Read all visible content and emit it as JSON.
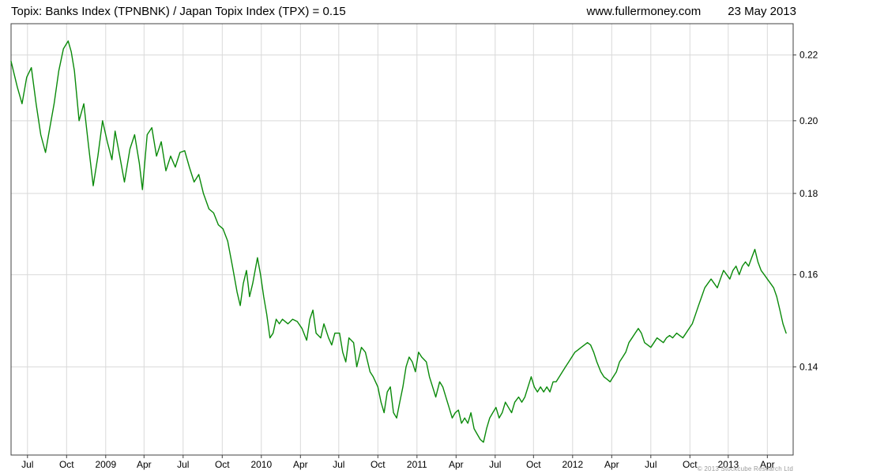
{
  "header": {
    "title": "Topix: Banks Index (TPNBNK) / Japan Topix Index (TPX) = 0.15",
    "website": "www.fullermoney.com",
    "date": "23 May 2013"
  },
  "footer": {
    "copyright": "© 2013 Stockcube Research Ltd"
  },
  "chart_data": {
    "type": "line",
    "title": "Topix: Banks Index (TPNBNK) / Japan Topix Index (TPX) = 0.15",
    "series_name": "TPNBNK / TPX",
    "last_value": 0.15,
    "y_scale": "log",
    "ylim": [
      0.1232,
      0.2302
    ],
    "y_ticks": [
      0.14,
      0.16,
      0.18,
      0.2,
      0.22
    ],
    "grid": true,
    "x_ticks": [
      {
        "label": "Jul",
        "f": 0.021
      },
      {
        "label": "Oct",
        "f": 0.071
      },
      {
        "label": "2009",
        "f": 0.121
      },
      {
        "label": "Apr",
        "f": 0.17
      },
      {
        "label": "Jul",
        "f": 0.22
      },
      {
        "label": "Oct",
        "f": 0.27
      },
      {
        "label": "2010",
        "f": 0.32
      },
      {
        "label": "Apr",
        "f": 0.37
      },
      {
        "label": "Jul",
        "f": 0.419
      },
      {
        "label": "Oct",
        "f": 0.469
      },
      {
        "label": "2011",
        "f": 0.519
      },
      {
        "label": "Apr",
        "f": 0.569
      },
      {
        "label": "Jul",
        "f": 0.619
      },
      {
        "label": "Oct",
        "f": 0.668
      },
      {
        "label": "2012",
        "f": 0.718
      },
      {
        "label": "Apr",
        "f": 0.768
      },
      {
        "label": "Jul",
        "f": 0.818
      },
      {
        "label": "Oct",
        "f": 0.868
      },
      {
        "label": "2013",
        "f": 0.917
      },
      {
        "label": "Apr",
        "f": 0.967
      }
    ],
    "colors": {
      "line": "#0a8a0a",
      "grid": "#d9d9d9",
      "border": "#404040",
      "text": "#000000"
    },
    "points": [
      [
        0.0,
        0.218
      ],
      [
        0.008,
        0.21
      ],
      [
        0.014,
        0.205
      ],
      [
        0.02,
        0.213
      ],
      [
        0.026,
        0.216
      ],
      [
        0.032,
        0.205
      ],
      [
        0.038,
        0.196
      ],
      [
        0.044,
        0.191
      ],
      [
        0.048,
        0.196
      ],
      [
        0.055,
        0.205
      ],
      [
        0.061,
        0.215
      ],
      [
        0.067,
        0.222
      ],
      [
        0.073,
        0.2245
      ],
      [
        0.077,
        0.221
      ],
      [
        0.081,
        0.215
      ],
      [
        0.087,
        0.2
      ],
      [
        0.093,
        0.205
      ],
      [
        0.099,
        0.193
      ],
      [
        0.105,
        0.182
      ],
      [
        0.111,
        0.19
      ],
      [
        0.117,
        0.2
      ],
      [
        0.123,
        0.194
      ],
      [
        0.129,
        0.189
      ],
      [
        0.133,
        0.197
      ],
      [
        0.139,
        0.19
      ],
      [
        0.145,
        0.183
      ],
      [
        0.152,
        0.192
      ],
      [
        0.158,
        0.196
      ],
      [
        0.164,
        0.188
      ],
      [
        0.168,
        0.181
      ],
      [
        0.174,
        0.196
      ],
      [
        0.18,
        0.198
      ],
      [
        0.186,
        0.19
      ],
      [
        0.192,
        0.194
      ],
      [
        0.198,
        0.186
      ],
      [
        0.204,
        0.19
      ],
      [
        0.21,
        0.187
      ],
      [
        0.216,
        0.191
      ],
      [
        0.222,
        0.1915
      ],
      [
        0.228,
        0.187
      ],
      [
        0.234,
        0.183
      ],
      [
        0.24,
        0.185
      ],
      [
        0.246,
        0.18
      ],
      [
        0.253,
        0.176
      ],
      [
        0.259,
        0.175
      ],
      [
        0.265,
        0.172
      ],
      [
        0.271,
        0.171
      ],
      [
        0.277,
        0.168
      ],
      [
        0.283,
        0.162
      ],
      [
        0.289,
        0.156
      ],
      [
        0.293,
        0.153
      ],
      [
        0.297,
        0.158
      ],
      [
        0.301,
        0.161
      ],
      [
        0.305,
        0.155
      ],
      [
        0.309,
        0.158
      ],
      [
        0.315,
        0.164
      ],
      [
        0.319,
        0.16
      ],
      [
        0.323,
        0.155
      ],
      [
        0.327,
        0.151
      ],
      [
        0.331,
        0.146
      ],
      [
        0.335,
        0.147
      ],
      [
        0.339,
        0.15
      ],
      [
        0.343,
        0.149
      ],
      [
        0.347,
        0.15
      ],
      [
        0.354,
        0.149
      ],
      [
        0.36,
        0.15
      ],
      [
        0.366,
        0.1495
      ],
      [
        0.372,
        0.148
      ],
      [
        0.378,
        0.1455
      ],
      [
        0.382,
        0.15
      ],
      [
        0.386,
        0.152
      ],
      [
        0.39,
        0.147
      ],
      [
        0.396,
        0.146
      ],
      [
        0.4,
        0.149
      ],
      [
        0.406,
        0.146
      ],
      [
        0.41,
        0.1445
      ],
      [
        0.414,
        0.147
      ],
      [
        0.42,
        0.147
      ],
      [
        0.424,
        0.143
      ],
      [
        0.428,
        0.141
      ],
      [
        0.432,
        0.146
      ],
      [
        0.438,
        0.145
      ],
      [
        0.442,
        0.14
      ],
      [
        0.448,
        0.144
      ],
      [
        0.453,
        0.143
      ],
      [
        0.459,
        0.139
      ],
      [
        0.463,
        0.138
      ],
      [
        0.469,
        0.136
      ],
      [
        0.473,
        0.133
      ],
      [
        0.477,
        0.131
      ],
      [
        0.481,
        0.135
      ],
      [
        0.485,
        0.136
      ],
      [
        0.489,
        0.131
      ],
      [
        0.493,
        0.13
      ],
      [
        0.497,
        0.133
      ],
      [
        0.501,
        0.136
      ],
      [
        0.505,
        0.14
      ],
      [
        0.509,
        0.142
      ],
      [
        0.513,
        0.141
      ],
      [
        0.517,
        0.139
      ],
      [
        0.521,
        0.143
      ],
      [
        0.525,
        0.142
      ],
      [
        0.531,
        0.141
      ],
      [
        0.535,
        0.138
      ],
      [
        0.539,
        0.136
      ],
      [
        0.543,
        0.134
      ],
      [
        0.548,
        0.137
      ],
      [
        0.552,
        0.136
      ],
      [
        0.556,
        0.134
      ],
      [
        0.56,
        0.132
      ],
      [
        0.564,
        0.13
      ],
      [
        0.568,
        0.131
      ],
      [
        0.572,
        0.1315
      ],
      [
        0.576,
        0.129
      ],
      [
        0.58,
        0.13
      ],
      [
        0.584,
        0.129
      ],
      [
        0.588,
        0.131
      ],
      [
        0.592,
        0.128
      ],
      [
        0.596,
        0.127
      ],
      [
        0.6,
        0.126
      ],
      [
        0.604,
        0.1255
      ],
      [
        0.608,
        0.128
      ],
      [
        0.612,
        0.13
      ],
      [
        0.616,
        0.131
      ],
      [
        0.62,
        0.132
      ],
      [
        0.624,
        0.13
      ],
      [
        0.628,
        0.131
      ],
      [
        0.632,
        0.133
      ],
      [
        0.636,
        0.132
      ],
      [
        0.64,
        0.131
      ],
      [
        0.644,
        0.133
      ],
      [
        0.649,
        0.134
      ],
      [
        0.653,
        0.133
      ],
      [
        0.657,
        0.134
      ],
      [
        0.661,
        0.136
      ],
      [
        0.665,
        0.138
      ],
      [
        0.669,
        0.136
      ],
      [
        0.673,
        0.135
      ],
      [
        0.677,
        0.136
      ],
      [
        0.681,
        0.135
      ],
      [
        0.685,
        0.136
      ],
      [
        0.689,
        0.135
      ],
      [
        0.693,
        0.137
      ],
      [
        0.697,
        0.137
      ],
      [
        0.701,
        0.138
      ],
      [
        0.705,
        0.139
      ],
      [
        0.709,
        0.14
      ],
      [
        0.713,
        0.141
      ],
      [
        0.717,
        0.142
      ],
      [
        0.721,
        0.143
      ],
      [
        0.725,
        0.1435
      ],
      [
        0.729,
        0.144
      ],
      [
        0.733,
        0.1445
      ],
      [
        0.737,
        0.145
      ],
      [
        0.741,
        0.1445
      ],
      [
        0.745,
        0.143
      ],
      [
        0.749,
        0.141
      ],
      [
        0.754,
        0.139
      ],
      [
        0.758,
        0.138
      ],
      [
        0.762,
        0.1375
      ],
      [
        0.766,
        0.137
      ],
      [
        0.77,
        0.138
      ],
      [
        0.774,
        0.139
      ],
      [
        0.778,
        0.141
      ],
      [
        0.782,
        0.142
      ],
      [
        0.786,
        0.143
      ],
      [
        0.79,
        0.145
      ],
      [
        0.794,
        0.146
      ],
      [
        0.798,
        0.147
      ],
      [
        0.802,
        0.148
      ],
      [
        0.806,
        0.147
      ],
      [
        0.81,
        0.145
      ],
      [
        0.814,
        0.1445
      ],
      [
        0.818,
        0.144
      ],
      [
        0.822,
        0.145
      ],
      [
        0.826,
        0.146
      ],
      [
        0.83,
        0.1455
      ],
      [
        0.834,
        0.145
      ],
      [
        0.838,
        0.146
      ],
      [
        0.842,
        0.1465
      ],
      [
        0.846,
        0.146
      ],
      [
        0.851,
        0.147
      ],
      [
        0.855,
        0.1465
      ],
      [
        0.859,
        0.146
      ],
      [
        0.863,
        0.147
      ],
      [
        0.867,
        0.148
      ],
      [
        0.871,
        0.149
      ],
      [
        0.875,
        0.151
      ],
      [
        0.879,
        0.153
      ],
      [
        0.883,
        0.155
      ],
      [
        0.887,
        0.157
      ],
      [
        0.891,
        0.158
      ],
      [
        0.895,
        0.159
      ],
      [
        0.899,
        0.158
      ],
      [
        0.903,
        0.157
      ],
      [
        0.907,
        0.159
      ],
      [
        0.911,
        0.161
      ],
      [
        0.915,
        0.16
      ],
      [
        0.919,
        0.159
      ],
      [
        0.923,
        0.161
      ],
      [
        0.927,
        0.162
      ],
      [
        0.931,
        0.16
      ],
      [
        0.935,
        0.162
      ],
      [
        0.939,
        0.163
      ],
      [
        0.943,
        0.162
      ],
      [
        0.947,
        0.164
      ],
      [
        0.951,
        0.166
      ],
      [
        0.955,
        0.163
      ],
      [
        0.959,
        0.161
      ],
      [
        0.963,
        0.16
      ],
      [
        0.967,
        0.159
      ],
      [
        0.971,
        0.158
      ],
      [
        0.975,
        0.157
      ],
      [
        0.979,
        0.155
      ],
      [
        0.983,
        0.152
      ],
      [
        0.987,
        0.149
      ],
      [
        0.991,
        0.147
      ]
    ]
  }
}
